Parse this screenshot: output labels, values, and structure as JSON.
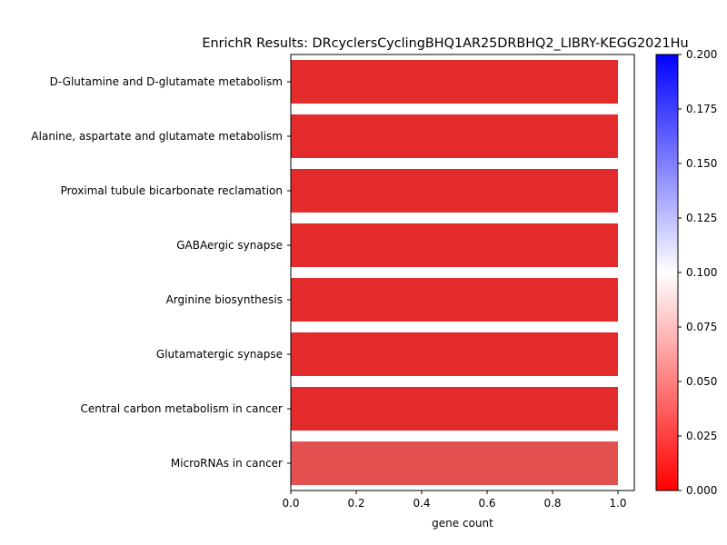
{
  "chart_data": {
    "type": "bar",
    "orientation": "horizontal",
    "title": "EnrichR Results: DRcyclersCyclingBHQ1AR25DRBHQ2_LIBRY-KEGG2021Hu",
    "xlabel": "gene count",
    "ylabel": "",
    "xlim": [
      0,
      1.05
    ],
    "x_ticks": [
      "0.0",
      "0.2",
      "0.4",
      "0.6",
      "0.8",
      "1.0"
    ],
    "grid": false,
    "categories": [
      "D-Glutamine and D-glutamate metabolism",
      "Alanine, aspartate and glutamate metabolism",
      "Proximal tubule bicarbonate reclamation",
      "GABAergic synapse",
      "Arginine biosynthesis",
      "Glutamatergic synapse",
      "Central carbon metabolism in cancer",
      "MicroRNAs in cancer"
    ],
    "values": [
      1,
      1,
      1,
      1,
      1,
      1,
      1,
      1
    ],
    "bar_colors": [
      "#e32b2b",
      "#e32b2b",
      "#e32b2b",
      "#e32b2b",
      "#e32b2b",
      "#e32b2b",
      "#e32b2b",
      "#e35050"
    ],
    "colorbar": {
      "range": [
        0.0,
        0.2
      ],
      "colors": [
        "#ff0000",
        "#ffffff",
        "#0000ff"
      ],
      "ticks": [
        "0.000",
        "0.025",
        "0.050",
        "0.075",
        "0.100",
        "0.125",
        "0.150",
        "0.175",
        "0.200"
      ]
    }
  }
}
